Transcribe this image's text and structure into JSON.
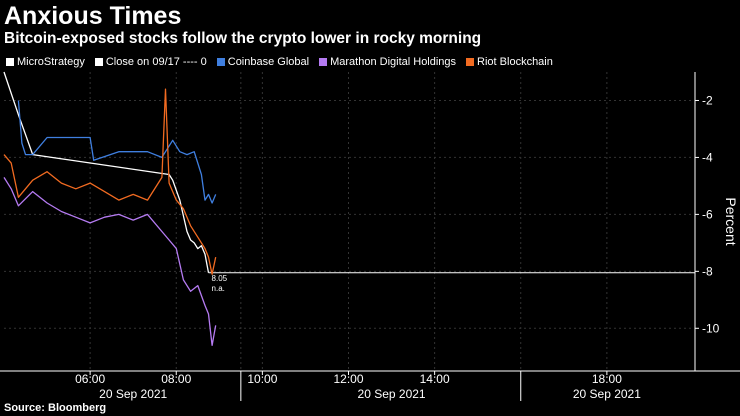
{
  "chart_data": {
    "type": "line",
    "title": "Anxious Times",
    "subtitle": "Bitcoin-exposed stocks follow the crypto lower in rocky morning",
    "ylabel": "Percent",
    "ylim": [
      -11.5,
      -1
    ],
    "yticks": [
      -2,
      -4,
      -6,
      -8,
      -10
    ],
    "ytick_labels": [
      "-2",
      "-4",
      "-6",
      "-8",
      "-10"
    ],
    "y_axis_side": "right",
    "x_axis_range": [
      "04:00",
      "20:00"
    ],
    "x_ticks": [
      {
        "label": "06:00",
        "x": "06:00"
      },
      {
        "label": "08:00",
        "x": "08:00"
      },
      {
        "label": "10:00",
        "x": "10:00"
      },
      {
        "label": "12:00",
        "x": "12:00"
      },
      {
        "label": "14:00",
        "x": "14:00"
      },
      {
        "label": "18:00",
        "x": "18:00"
      }
    ],
    "date_labels": [
      {
        "label": "20 Sep 2021",
        "x": "07:00"
      },
      {
        "label": "20 Sep 2021",
        "x": "13:00"
      },
      {
        "label": "20 Sep 2021",
        "x": "18:00"
      }
    ],
    "session_dividers": [
      "09:30",
      "16:00"
    ],
    "reference_line": {
      "label": "Close on 09/17 ---- 0",
      "value": 0
    },
    "flat_line": {
      "value": -8.05,
      "from": "08:45",
      "to": "20:00"
    },
    "annotations": [
      {
        "text": "8.05",
        "x": "08:45",
        "y": -8.05
      },
      {
        "text": "n.a.",
        "x": "08:45",
        "y": -8.05
      }
    ],
    "series": [
      {
        "name": "MicroStrategy",
        "color": "#ffffff",
        "points": [
          [
            "04:00",
            -1.0
          ],
          [
            "04:20",
            -2.5
          ],
          [
            "04:40",
            -3.9
          ],
          [
            "07:50",
            -4.6
          ],
          [
            "07:55",
            -4.8
          ],
          [
            "08:05",
            -5.5
          ],
          [
            "08:15",
            -6.6
          ],
          [
            "08:20",
            -6.9
          ],
          [
            "08:25",
            -7.0
          ],
          [
            "08:30",
            -7.2
          ],
          [
            "08:35",
            -7.1
          ],
          [
            "08:40",
            -7.4
          ],
          [
            "08:45",
            -8.05
          ]
        ]
      },
      {
        "name": "Coinbase Global",
        "color": "#3f7fe0",
        "points": [
          [
            "04:20",
            -2.0
          ],
          [
            "04:25",
            -3.5
          ],
          [
            "04:30",
            -3.9
          ],
          [
            "04:40",
            -3.9
          ],
          [
            "05:00",
            -3.3
          ],
          [
            "06:00",
            -3.3
          ],
          [
            "06:05",
            -4.1
          ],
          [
            "06:40",
            -3.8
          ],
          [
            "07:20",
            -3.8
          ],
          [
            "07:40",
            -4.0
          ],
          [
            "07:55",
            -3.4
          ],
          [
            "08:05",
            -3.8
          ],
          [
            "08:15",
            -3.9
          ],
          [
            "08:25",
            -3.8
          ],
          [
            "08:35",
            -4.6
          ],
          [
            "08:40",
            -5.5
          ],
          [
            "08:45",
            -5.3
          ],
          [
            "08:50",
            -5.6
          ],
          [
            "08:55",
            -5.3
          ]
        ]
      },
      {
        "name": "Marathon Digital Holdings",
        "color": "#b57bf2",
        "points": [
          [
            "04:00",
            -4.7
          ],
          [
            "04:10",
            -5.1
          ],
          [
            "04:20",
            -5.7
          ],
          [
            "04:40",
            -5.2
          ],
          [
            "05:00",
            -5.6
          ],
          [
            "05:20",
            -5.9
          ],
          [
            "05:40",
            -6.1
          ],
          [
            "06:00",
            -6.3
          ],
          [
            "06:20",
            -6.1
          ],
          [
            "06:40",
            -6.0
          ],
          [
            "07:00",
            -6.2
          ],
          [
            "07:20",
            -6.0
          ],
          [
            "07:40",
            -6.6
          ],
          [
            "07:50",
            -6.9
          ],
          [
            "08:00",
            -7.2
          ],
          [
            "08:10",
            -8.3
          ],
          [
            "08:20",
            -8.7
          ],
          [
            "08:30",
            -8.5
          ],
          [
            "08:40",
            -9.2
          ],
          [
            "08:45",
            -9.5
          ],
          [
            "08:50",
            -10.6
          ],
          [
            "08:55",
            -9.9
          ]
        ]
      },
      {
        "name": "Riot Blockchain",
        "color": "#f26b21",
        "points": [
          [
            "04:00",
            -3.9
          ],
          [
            "04:10",
            -4.2
          ],
          [
            "04:20",
            -5.4
          ],
          [
            "04:40",
            -4.8
          ],
          [
            "05:00",
            -4.5
          ],
          [
            "05:20",
            -4.9
          ],
          [
            "05:40",
            -5.1
          ],
          [
            "06:00",
            -4.9
          ],
          [
            "06:20",
            -5.2
          ],
          [
            "06:40",
            -5.5
          ],
          [
            "07:00",
            -5.3
          ],
          [
            "07:20",
            -5.5
          ],
          [
            "07:40",
            -4.7
          ],
          [
            "07:45",
            -1.6
          ],
          [
            "07:50",
            -4.9
          ],
          [
            "08:00",
            -5.5
          ],
          [
            "08:10",
            -5.8
          ],
          [
            "08:20",
            -6.4
          ],
          [
            "08:30",
            -6.8
          ],
          [
            "08:40",
            -7.2
          ],
          [
            "08:45",
            -7.5
          ],
          [
            "08:50",
            -8.1
          ],
          [
            "08:55",
            -7.5
          ]
        ]
      }
    ],
    "legend": [
      "MicroStrategy",
      "Close on 09/17 ---- 0",
      "Coinbase Global",
      "Marathon Digital Holdings",
      "Riot Blockchain"
    ],
    "source": "Source: Bloomberg"
  }
}
